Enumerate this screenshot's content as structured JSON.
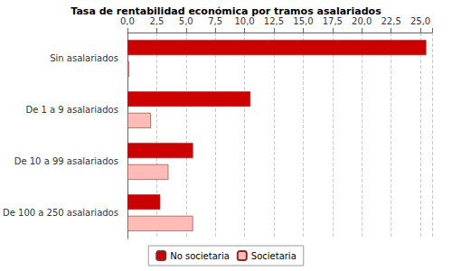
{
  "chart_data": {
    "type": "bar",
    "title": "Tasa de rentabilidad económica por tramos asalariados",
    "orientation": "horizontal",
    "categories": [
      "Sin asalariados",
      "De 1 a 9 asalariados",
      "De 10 a 99 asalariados",
      "De 100 a 250 asalariados"
    ],
    "series": [
      {
        "name": "No societaria",
        "color": "#cc0000",
        "values": [
          25.5,
          10.5,
          5.6,
          2.8
        ]
      },
      {
        "name": "Societaria",
        "color": "#ffbbb5",
        "values": [
          0.15,
          2.0,
          3.5,
          5.6
        ]
      }
    ],
    "xlim": [
      0,
      26
    ],
    "xticks": [
      {
        "value": 0,
        "label": "0,0"
      },
      {
        "value": 2.5,
        "label": "2,5"
      },
      {
        "value": 5,
        "label": "5,0"
      },
      {
        "value": 7.5,
        "label": "7,5"
      },
      {
        "value": 10,
        "label": "10,0"
      },
      {
        "value": 12.5,
        "label": "12,5"
      },
      {
        "value": 15,
        "label": "15,0"
      },
      {
        "value": 17.5,
        "label": "17,5"
      },
      {
        "value": 20,
        "label": "20,0"
      },
      {
        "value": 22.5,
        "label": "22,5"
      },
      {
        "value": 25,
        "label": "25,0"
      }
    ],
    "grid": true,
    "legend": "bottom"
  }
}
